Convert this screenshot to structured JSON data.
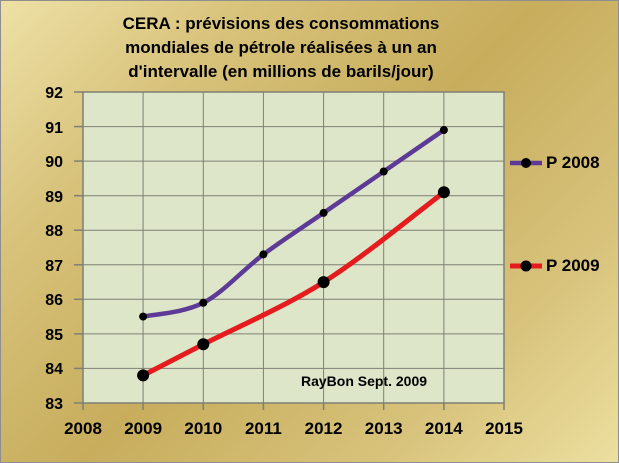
{
  "title": {
    "lines": [
      "CERA : prévisions des consommations",
      "mondiales de pétrole réalisées à un an",
      "d'intervalle (en millions de barils/jour)"
    ],
    "full": "CERA : prévisions des consommations mondiales de pétrole réalisées à un an d'intervalle (en millions de barils/jour)"
  },
  "annotation": "RayBon Sept. 2009",
  "legend": [
    {
      "label": "P 2008",
      "color": "#5c3a96"
    },
    {
      "label": "P 2009",
      "color": "#e51b1e"
    }
  ],
  "chart_data": {
    "type": "line",
    "title": "CERA : prévisions des consommations mondiales de pétrole réalisées à un an d'intervalle (en millions de barils/jour)",
    "x": [
      2009,
      2010,
      2011,
      2012,
      2013,
      2014
    ],
    "series": [
      {
        "name": "P 2008",
        "color": "#5c3a96",
        "line_width": 4.5,
        "marker_radius": 4,
        "values": [
          85.5,
          85.9,
          87.3,
          88.5,
          89.7,
          90.9
        ]
      },
      {
        "name": "P 2009",
        "color": "#e51b1e",
        "line_width": 5,
        "marker_radius": 6,
        "values": [
          83.8,
          84.7,
          null,
          86.5,
          null,
          89.1
        ]
      }
    ],
    "xlabel": "",
    "ylabel": "",
    "x_ticks": [
      2008,
      2009,
      2010,
      2011,
      2012,
      2013,
      2014,
      2015
    ],
    "y_ticks": [
      92,
      91,
      90,
      89,
      88,
      87,
      86,
      85,
      84,
      83
    ],
    "xlim": [
      2008,
      2015
    ],
    "ylim": [
      83,
      92
    ],
    "grid": true,
    "legend_position": "right",
    "marker_color": "#000000",
    "plot_bg": "#dde6c8",
    "grid_color": "#7f7f76",
    "axis_text_color": "#000000",
    "annotation": "RayBon Sept. 2009"
  }
}
